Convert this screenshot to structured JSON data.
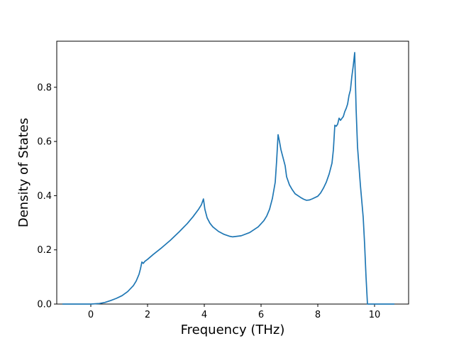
{
  "chart_data": {
    "type": "line",
    "title": "",
    "xlabel": "Frequency (THz)",
    "ylabel": "Density of States",
    "xlim": [
      -1.2,
      11.2
    ],
    "ylim": [
      0,
      0.97
    ],
    "x_ticks": [
      {
        "value": 0,
        "label": "0"
      },
      {
        "value": 2,
        "label": "2"
      },
      {
        "value": 4,
        "label": "4"
      },
      {
        "value": 6,
        "label": "6"
      },
      {
        "value": 8,
        "label": "8"
      },
      {
        "value": 10,
        "label": "10"
      }
    ],
    "y_ticks": [
      {
        "value": 0,
        "label": "0.0"
      },
      {
        "value": 0.2,
        "label": "0.2"
      },
      {
        "value": 0.4,
        "label": "0.4"
      },
      {
        "value": 0.6,
        "label": "0.6"
      },
      {
        "value": 0.8,
        "label": "0.8"
      }
    ],
    "grid": false,
    "legend": "none",
    "series": [
      {
        "color": "#1f77b4",
        "points": [
          [
            -1.0,
            0.0
          ],
          [
            0.0,
            0.0
          ],
          [
            0.3,
            0.002
          ],
          [
            0.5,
            0.006
          ],
          [
            0.7,
            0.013
          ],
          [
            0.9,
            0.021
          ],
          [
            1.1,
            0.031
          ],
          [
            1.3,
            0.046
          ],
          [
            1.5,
            0.068
          ],
          [
            1.6,
            0.085
          ],
          [
            1.7,
            0.11
          ],
          [
            1.75,
            0.13
          ],
          [
            1.8,
            0.155
          ],
          [
            1.85,
            0.15
          ],
          [
            1.9,
            0.157
          ],
          [
            2.0,
            0.165
          ],
          [
            2.2,
            0.183
          ],
          [
            2.5,
            0.208
          ],
          [
            2.8,
            0.235
          ],
          [
            3.1,
            0.265
          ],
          [
            3.4,
            0.297
          ],
          [
            3.6,
            0.322
          ],
          [
            3.8,
            0.35
          ],
          [
            3.9,
            0.367
          ],
          [
            3.97,
            0.388
          ],
          [
            4.02,
            0.35
          ],
          [
            4.1,
            0.318
          ],
          [
            4.2,
            0.298
          ],
          [
            4.3,
            0.285
          ],
          [
            4.5,
            0.268
          ],
          [
            4.7,
            0.257
          ],
          [
            4.9,
            0.25
          ],
          [
            5.0,
            0.248
          ],
          [
            5.3,
            0.252
          ],
          [
            5.6,
            0.264
          ],
          [
            5.9,
            0.285
          ],
          [
            6.1,
            0.308
          ],
          [
            6.2,
            0.325
          ],
          [
            6.3,
            0.35
          ],
          [
            6.4,
            0.39
          ],
          [
            6.5,
            0.45
          ],
          [
            6.55,
            0.53
          ],
          [
            6.6,
            0.625
          ],
          [
            6.65,
            0.6
          ],
          [
            6.7,
            0.57
          ],
          [
            6.8,
            0.53
          ],
          [
            6.85,
            0.51
          ],
          [
            6.9,
            0.47
          ],
          [
            7.0,
            0.44
          ],
          [
            7.1,
            0.422
          ],
          [
            7.2,
            0.407
          ],
          [
            7.4,
            0.393
          ],
          [
            7.5,
            0.387
          ],
          [
            7.6,
            0.383
          ],
          [
            7.7,
            0.384
          ],
          [
            7.8,
            0.388
          ],
          [
            8.0,
            0.398
          ],
          [
            8.1,
            0.41
          ],
          [
            8.2,
            0.428
          ],
          [
            8.3,
            0.45
          ],
          [
            8.4,
            0.48
          ],
          [
            8.5,
            0.52
          ],
          [
            8.55,
            0.57
          ],
          [
            8.6,
            0.66
          ],
          [
            8.65,
            0.656
          ],
          [
            8.7,
            0.664
          ],
          [
            8.75,
            0.686
          ],
          [
            8.8,
            0.678
          ],
          [
            8.9,
            0.692
          ],
          [
            8.95,
            0.71
          ],
          [
            9.0,
            0.722
          ],
          [
            9.05,
            0.738
          ],
          [
            9.1,
            0.77
          ],
          [
            9.15,
            0.79
          ],
          [
            9.2,
            0.84
          ],
          [
            9.25,
            0.88
          ],
          [
            9.3,
            0.928
          ],
          [
            9.35,
            0.72
          ],
          [
            9.4,
            0.58
          ],
          [
            9.5,
            0.44
          ],
          [
            9.6,
            0.32
          ],
          [
            9.65,
            0.22
          ],
          [
            9.7,
            0.1
          ],
          [
            9.75,
            0.0
          ],
          [
            10.7,
            0.0
          ]
        ]
      }
    ]
  }
}
